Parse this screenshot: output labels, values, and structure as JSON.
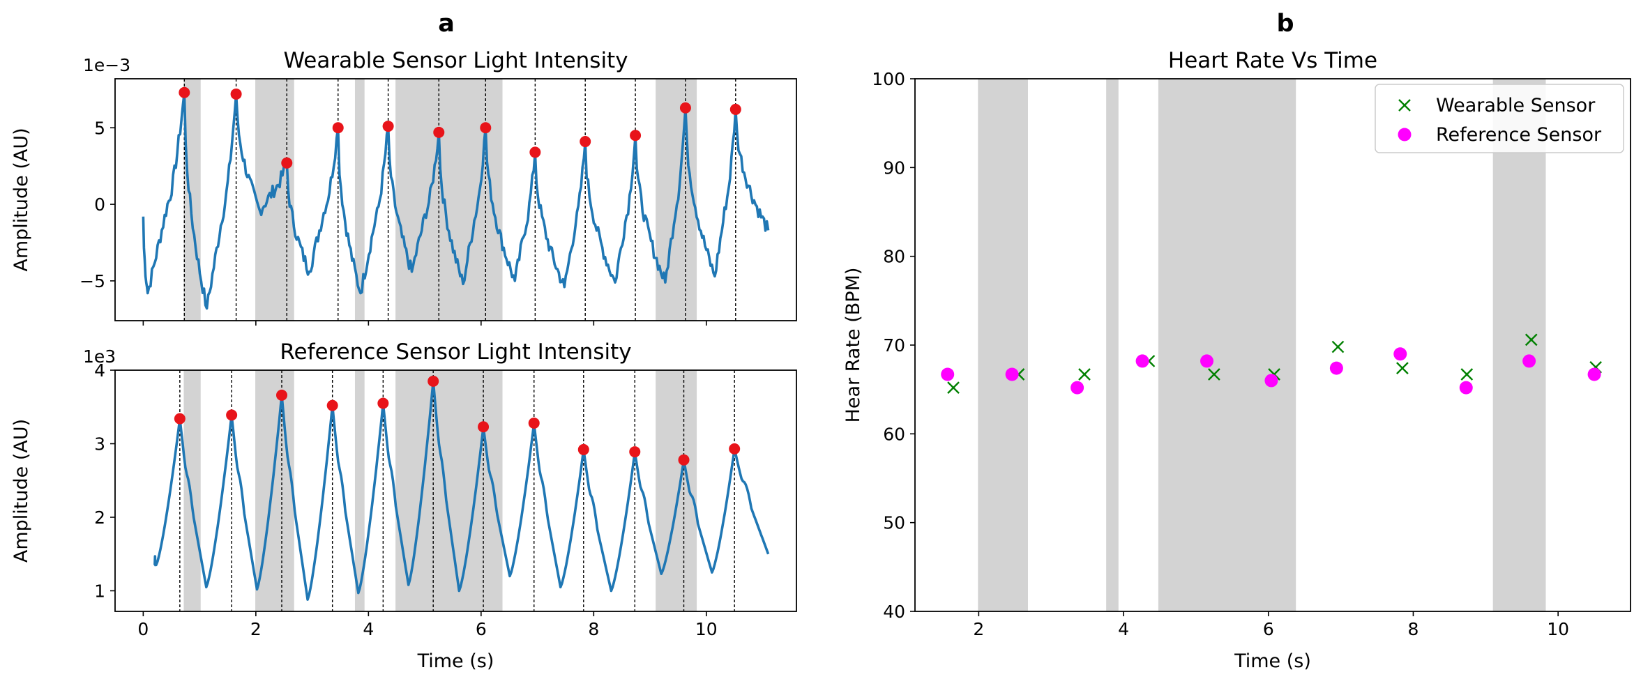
{
  "panels": {
    "a": "a",
    "b": "b"
  },
  "colors": {
    "signal": "#1f77b4",
    "peak": "#e8141a",
    "shade": "#d3d3d3",
    "wearable_marker": "#008000",
    "reference_marker": "#ff00ff"
  },
  "chart_data": [
    {
      "id": "wearable",
      "type": "line",
      "title": "Wearable Sensor Light Intensity",
      "xlabel": "",
      "ylabel": "Amplitude (AU)",
      "offset_text": "1e−3",
      "xlim": [
        -0.5,
        11.6
      ],
      "ylim": [
        -7.6,
        8.2
      ],
      "x_ticks": [
        0,
        2,
        4,
        6,
        8,
        10
      ],
      "y_ticks": [
        -5,
        0,
        5
      ],
      "y_tick_labels": [
        "−5",
        "0",
        "5"
      ],
      "shaded_regions": [
        [
          0.72,
          1.02
        ],
        [
          1.99,
          2.68
        ],
        [
          3.76,
          3.93
        ],
        [
          4.48,
          6.38
        ],
        [
          9.1,
          9.83
        ]
      ],
      "peak_times": [
        0.73,
        1.65,
        2.55,
        3.46,
        4.35,
        5.25,
        6.08,
        6.96,
        7.85,
        8.74,
        9.63,
        10.52
      ],
      "peak_values": [
        7.3,
        7.2,
        2.7,
        5.0,
        5.1,
        4.7,
        5.0,
        3.4,
        4.1,
        4.5,
        6.3,
        6.2
      ],
      "trough_times": [
        0.08,
        1.13,
        2.07,
        2.95,
        3.86,
        4.77,
        5.68,
        6.6,
        7.48,
        8.38,
        9.27,
        10.15,
        11.1
      ],
      "trough_values": [
        -5.8,
        -6.8,
        -0.4,
        -4.4,
        -5.8,
        -4.4,
        -5.2,
        -5.0,
        -5.4,
        -5.1,
        -5.1,
        -4.7,
        -1.7
      ]
    },
    {
      "id": "reference",
      "type": "line",
      "title": "Reference Sensor Light Intensity",
      "xlabel": "Time (s)",
      "ylabel": "Amplitude (AU)",
      "offset_text": "1e3",
      "xlim": [
        -0.5,
        11.6
      ],
      "ylim": [
        0.72,
        4.0
      ],
      "x_ticks": [
        0,
        2,
        4,
        6,
        8,
        10
      ],
      "y_ticks": [
        1,
        2,
        3,
        4
      ],
      "y_tick_labels": [
        "1",
        "2",
        "3",
        "4"
      ],
      "shaded_regions": [
        [
          0.72,
          1.02
        ],
        [
          1.99,
          2.68
        ],
        [
          3.76,
          3.93
        ],
        [
          4.48,
          6.38
        ],
        [
          9.1,
          9.83
        ]
      ],
      "peak_times": [
        0.65,
        1.57,
        2.46,
        3.36,
        4.26,
        5.15,
        6.04,
        6.94,
        7.82,
        8.73,
        9.6,
        10.5
      ],
      "peak_values": [
        3.34,
        3.39,
        3.66,
        3.52,
        3.55,
        3.85,
        3.23,
        3.28,
        2.92,
        2.89,
        2.78,
        2.93
      ],
      "trough_times": [
        0.23,
        1.12,
        2.02,
        2.92,
        3.82,
        4.71,
        5.61,
        6.51,
        7.41,
        8.31,
        9.2,
        10.1,
        11.1
      ],
      "trough_values": [
        1.35,
        1.05,
        1.02,
        0.88,
        0.97,
        1.08,
        1.0,
        1.2,
        1.05,
        1.0,
        1.23,
        1.25,
        1.5
      ]
    },
    {
      "id": "heart-rate",
      "type": "scatter",
      "title": "Heart Rate Vs Time",
      "xlabel": "Time (s)",
      "ylabel": "Hear Rate (BPM)",
      "xlim": [
        1.12,
        11.0
      ],
      "ylim": [
        40,
        100
      ],
      "x_ticks": [
        2,
        4,
        6,
        8,
        10
      ],
      "y_ticks": [
        40,
        50,
        60,
        70,
        80,
        90,
        100
      ],
      "shaded_regions": [
        [
          1.99,
          2.68
        ],
        [
          3.76,
          3.93
        ],
        [
          4.48,
          6.38
        ],
        [
          9.1,
          9.83
        ]
      ],
      "legend_position": "top-right",
      "series": [
        {
          "name": "Wearable Sensor",
          "marker": "x",
          "x": [
            1.65,
            2.55,
            3.46,
            4.35,
            5.25,
            6.08,
            6.96,
            7.85,
            8.74,
            9.63,
            10.52
          ],
          "y": [
            65.2,
            66.7,
            66.7,
            68.2,
            66.7,
            66.7,
            69.8,
            67.4,
            66.7,
            70.6,
            67.5
          ]
        },
        {
          "name": "Reference Sensor",
          "marker": "circle",
          "x": [
            1.57,
            2.46,
            3.36,
            4.26,
            5.15,
            6.04,
            6.94,
            7.82,
            8.73,
            9.6,
            10.5
          ],
          "y": [
            66.7,
            66.7,
            65.2,
            68.2,
            68.2,
            66.0,
            67.4,
            69.0,
            65.2,
            68.2,
            66.7
          ]
        }
      ]
    }
  ]
}
